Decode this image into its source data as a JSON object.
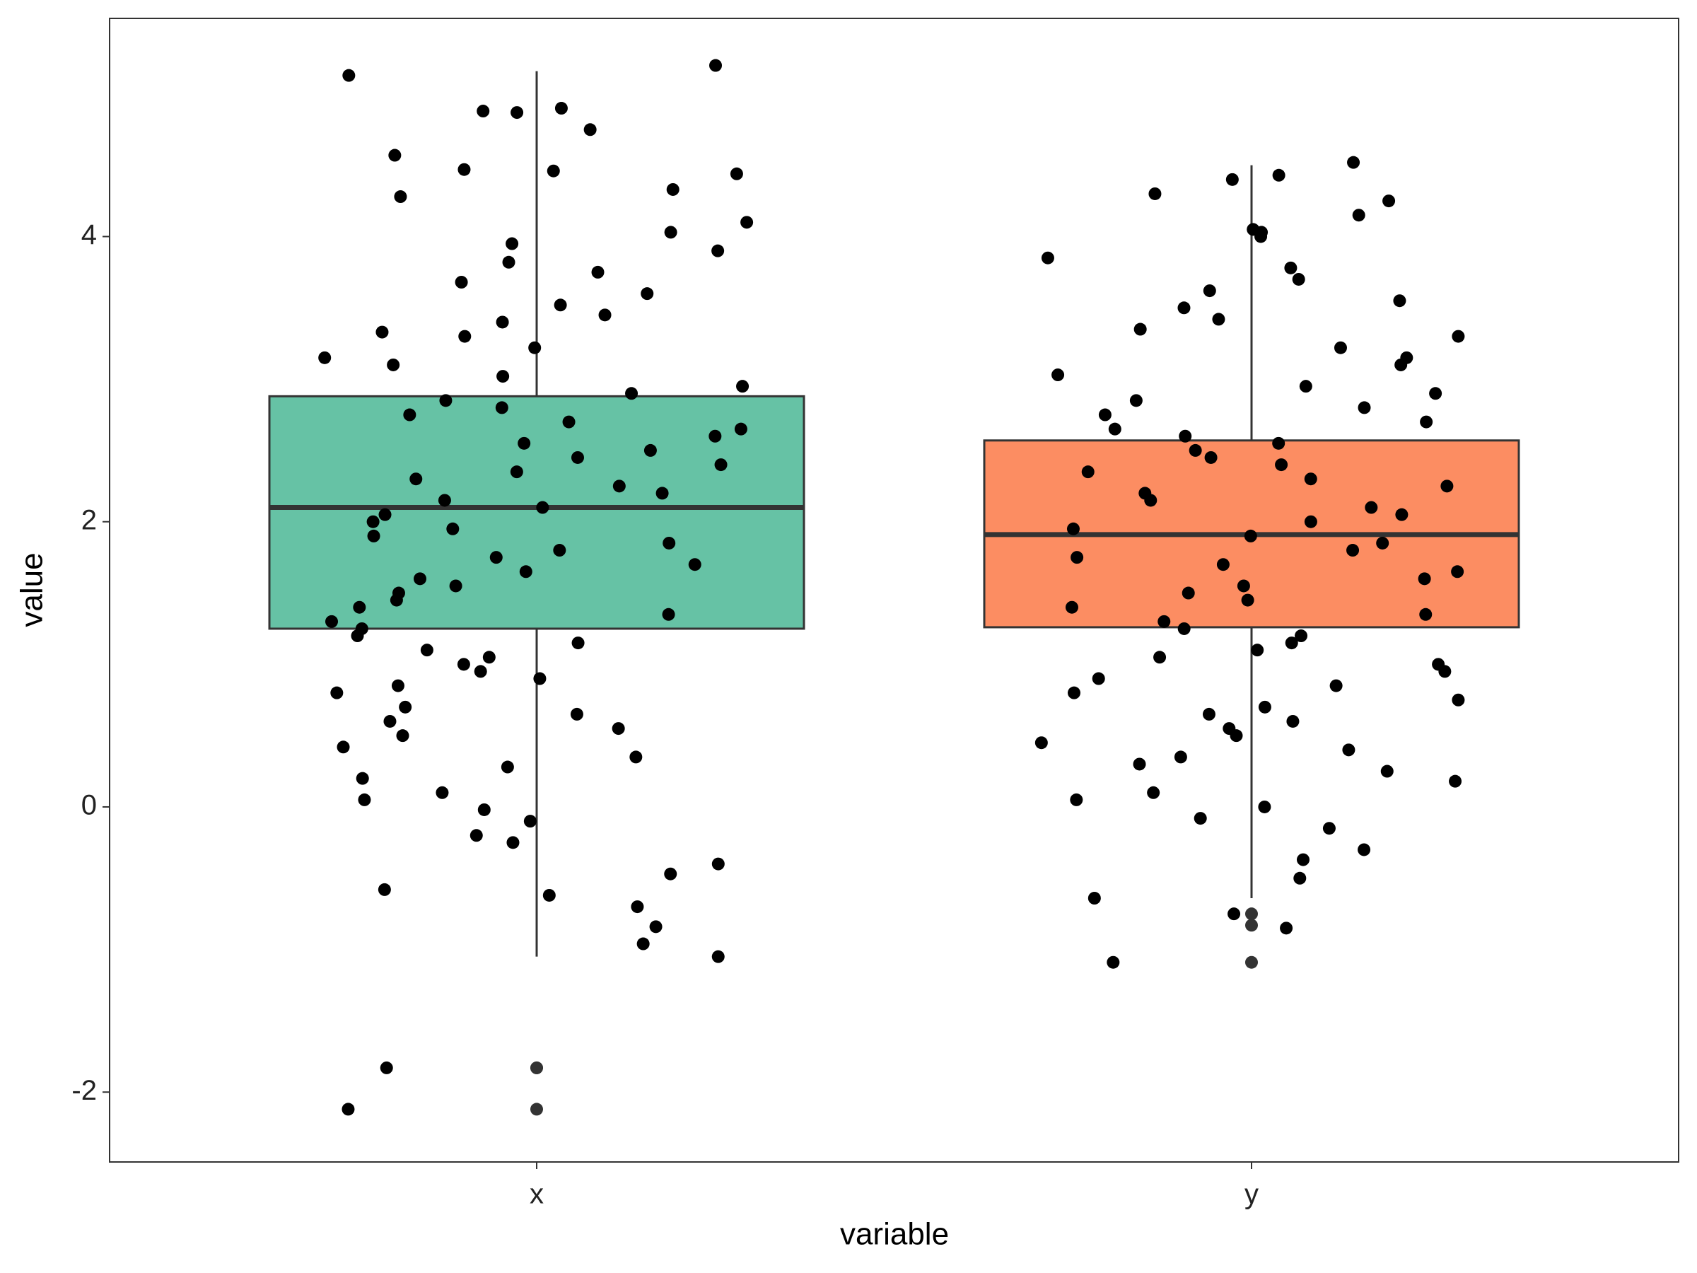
{
  "chart_data": {
    "type": "box",
    "x_label": "variable",
    "y_label": "value",
    "categories": [
      "x",
      "y"
    ],
    "colors": [
      "#66c2a5",
      "#fc8d62"
    ],
    "whisker_low": [
      -1.05,
      -0.64
    ],
    "q1": [
      1.25,
      1.26
    ],
    "median": [
      2.1,
      1.91
    ],
    "q3": [
      2.88,
      2.57
    ],
    "whisker_high": [
      5.16,
      4.5
    ],
    "outliers": [
      [
        -1.83,
        -1.83,
        -2.12
      ],
      [
        -0.75,
        -0.83,
        -1.09
      ]
    ],
    "points": [
      [
        5.2,
        5.13,
        4.9,
        4.88,
        4.87,
        4.75,
        4.57,
        4.47,
        4.46,
        4.44,
        4.33,
        4.28,
        4.1,
        4.03,
        3.95,
        3.9,
        3.82,
        3.75,
        3.68,
        3.6,
        3.52,
        3.45,
        3.4,
        3.33,
        3.3,
        3.22,
        3.15,
        3.1,
        3.02,
        2.95,
        2.9,
        2.85,
        2.8,
        2.75,
        2.7,
        2.65,
        2.6,
        2.55,
        2.5,
        2.45,
        2.4,
        2.35,
        2.3,
        2.25,
        2.2,
        2.15,
        2.1,
        2.05,
        2.0,
        1.95,
        1.9,
        1.85,
        1.8,
        1.75,
        1.7,
        1.65,
        1.6,
        1.55,
        1.5,
        1.45,
        1.4,
        1.35,
        1.3,
        1.25,
        1.2,
        1.15,
        1.1,
        1.05,
        1.0,
        0.95,
        0.9,
        0.85,
        0.8,
        0.7,
        0.65,
        0.6,
        0.55,
        0.5,
        0.42,
        0.35,
        0.28,
        0.2,
        0.1,
        0.05,
        -0.02,
        -0.1,
        -0.2,
        -0.25,
        -0.4,
        -0.47,
        -0.58,
        -0.62,
        -0.7,
        -0.84,
        -0.96,
        -1.05,
        -1.83,
        -2.12
      ],
      [
        4.52,
        4.43,
        4.4,
        4.3,
        4.25,
        4.15,
        4.05,
        4.03,
        4.0,
        3.85,
        3.78,
        3.7,
        3.62,
        3.55,
        3.5,
        3.42,
        3.35,
        3.3,
        3.22,
        3.15,
        3.1,
        3.03,
        2.95,
        2.9,
        2.85,
        2.8,
        2.75,
        2.7,
        2.65,
        2.6,
        2.55,
        2.5,
        2.45,
        2.4,
        2.35,
        2.3,
        2.25,
        2.2,
        2.15,
        2.1,
        2.05,
        2.0,
        1.95,
        1.9,
        1.85,
        1.8,
        1.75,
        1.7,
        1.65,
        1.6,
        1.55,
        1.5,
        1.45,
        1.4,
        1.35,
        1.3,
        1.25,
        1.2,
        1.15,
        1.1,
        1.05,
        1.0,
        0.95,
        0.9,
        0.85,
        0.8,
        0.75,
        0.7,
        0.65,
        0.6,
        0.55,
        0.5,
        0.45,
        0.4,
        0.35,
        0.3,
        0.25,
        0.18,
        0.1,
        0.05,
        0.0,
        -0.08,
        -0.15,
        -0.3,
        -0.37,
        -0.5,
        -0.64,
        -0.75,
        -0.85,
        -1.09
      ]
    ],
    "ylim": [
      -2.49,
      5.53
    ],
    "yticks": [
      -2,
      0,
      2,
      4
    ],
    "grid": false
  }
}
